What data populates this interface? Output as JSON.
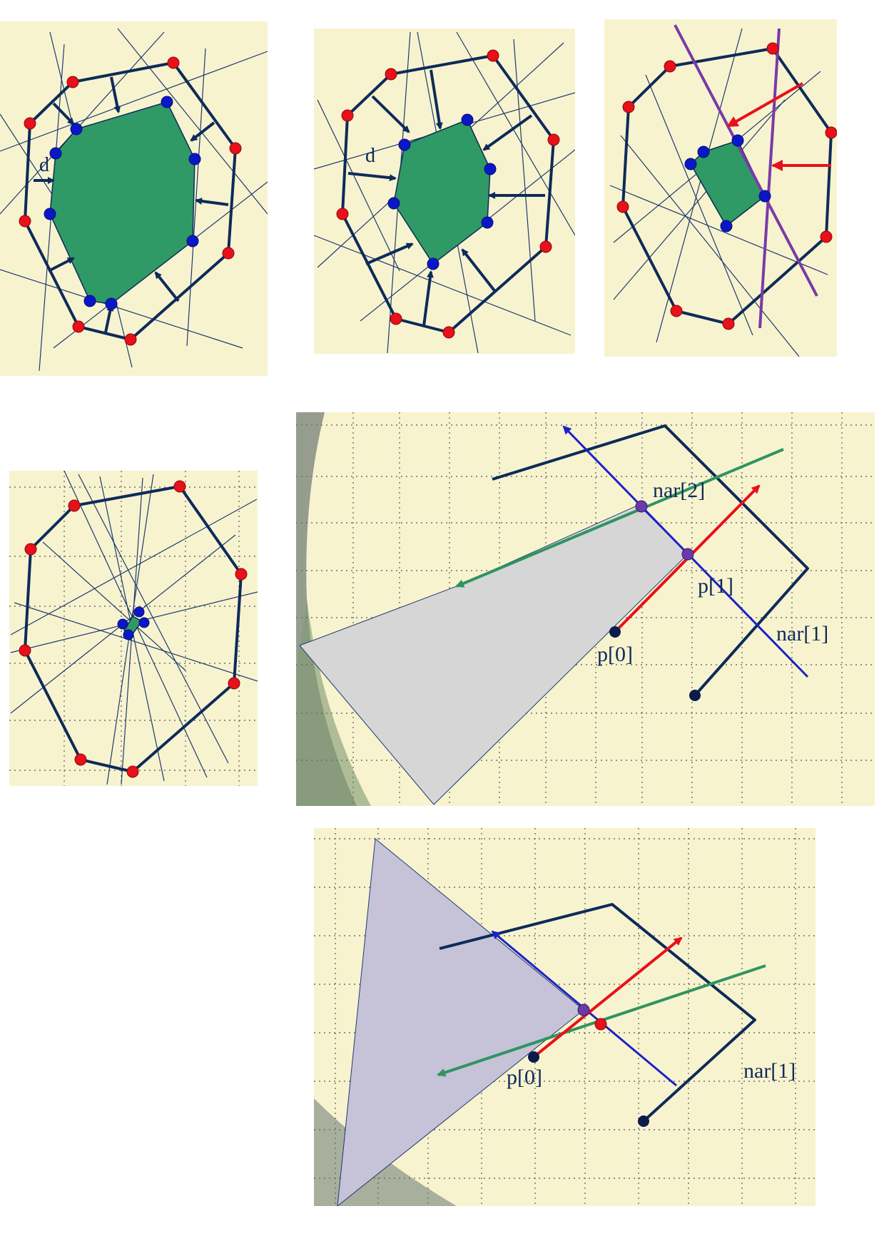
{
  "labels": {
    "d1": "d",
    "d2": "d",
    "nar2": "nar[2]",
    "p1": "p[1]",
    "nar1_a": "nar[1]",
    "p0_a": "p[0]",
    "p0_b": "p[0]",
    "nar1_b": "nar[1]"
  },
  "colors": {
    "outline": "#0d2b5a",
    "vertex_red": "#e8101a",
    "vertex_blue": "#0a17c8",
    "kernel_green": "#2f9a65",
    "clip_purple": "#7a3aa8",
    "ray_red": "#e8101a",
    "ray_green": "#2e9460",
    "ray_blue": "#1a22c8",
    "region_gray": "#d6d6d6",
    "region_lavender": "#c6c2d8"
  }
}
